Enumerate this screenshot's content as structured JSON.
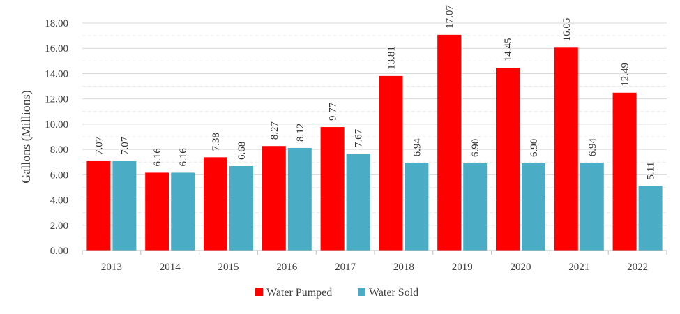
{
  "chart_data": {
    "type": "bar",
    "title": "",
    "xlabel": "",
    "ylabel": "Gallons (Millions)",
    "ylim": [
      0,
      18
    ],
    "y_ticks": [
      "0.00",
      "2.00",
      "4.00",
      "6.00",
      "8.00",
      "10.00",
      "12.00",
      "14.00",
      "16.00",
      "18.00"
    ],
    "categories": [
      "2013",
      "2014",
      "2015",
      "2016",
      "2017",
      "2018",
      "2019",
      "2020",
      "2021",
      "2022"
    ],
    "series": [
      {
        "name": "Water Pumped",
        "color": "#ff0000",
        "values": [
          7.07,
          6.16,
          7.38,
          8.27,
          9.77,
          13.81,
          17.07,
          14.45,
          16.05,
          12.49
        ],
        "labels": [
          "7.07",
          "6.16",
          "7.38",
          "8.27",
          "9.77",
          "13.81",
          "17.07",
          "14.45",
          "16.05",
          "12.49"
        ]
      },
      {
        "name": "Water Sold",
        "color": "#4bacc6",
        "values": [
          7.07,
          6.16,
          6.68,
          8.12,
          7.67,
          6.94,
          6.9,
          6.9,
          6.94,
          5.11
        ],
        "labels": [
          "7.07",
          "6.16",
          "6.68",
          "8.12",
          "7.67",
          "6.94",
          "6.90",
          "6.90",
          "6.94",
          "5.11"
        ]
      }
    ],
    "grid": true,
    "legend_position": "bottom"
  }
}
